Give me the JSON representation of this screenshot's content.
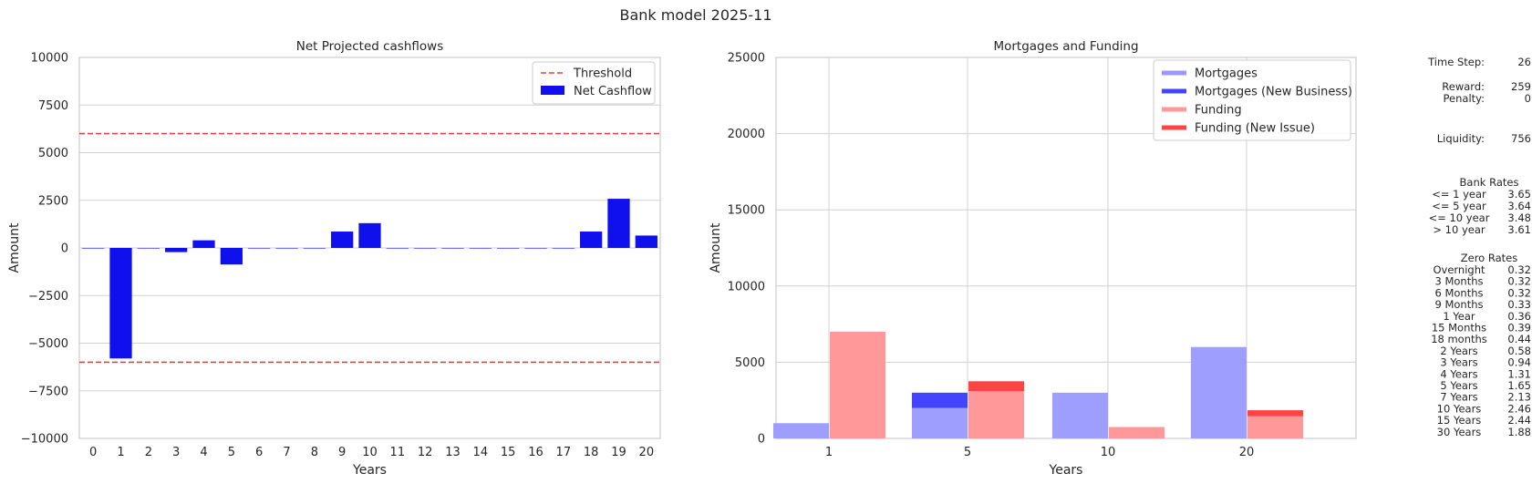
{
  "figure_title": "Bank model 2025-11",
  "chart_data": [
    {
      "type": "bar",
      "title": "Net Projected cashflows",
      "xlabel": "Years",
      "ylabel": "Amount",
      "ylim": [
        -10000,
        10000
      ],
      "yticks": [
        10000,
        7500,
        5000,
        2500,
        0,
        -2500,
        -5000,
        -7500,
        -10000
      ],
      "ytick_labels": [
        "10000",
        "7500",
        "5000",
        "2500",
        "0",
        "−2500",
        "−5000",
        "−7500",
        "−10000"
      ],
      "categories": [
        "0",
        "1",
        "2",
        "3",
        "4",
        "5",
        "6",
        "7",
        "8",
        "9",
        "10",
        "11",
        "12",
        "13",
        "14",
        "15",
        "16",
        "17",
        "18",
        "19",
        "20"
      ],
      "series": [
        {
          "name": "Net Cashflow",
          "color": "#1010ee",
          "values": [
            0,
            -5800,
            0,
            -220,
            400,
            -870,
            0,
            0,
            0,
            860,
            1300,
            0,
            0,
            0,
            0,
            0,
            0,
            0,
            860,
            2580,
            650
          ]
        }
      ],
      "threshold": {
        "name": "Threshold",
        "color": "#dd4444",
        "values": [
          6000,
          -6000
        ]
      },
      "grid": "horizontal",
      "legend": "top-right"
    },
    {
      "type": "bar",
      "title": "Mortgages and Funding",
      "xlabel": "Years",
      "ylabel": "Amount",
      "ylim": [
        0,
        25000
      ],
      "yticks": [
        0,
        5000,
        10000,
        15000,
        20000,
        25000
      ],
      "ytick_labels": [
        "0",
        "5000",
        "10000",
        "15000",
        "20000",
        "25000"
      ],
      "categories": [
        "1",
        "5",
        "10",
        "20"
      ],
      "series": [
        {
          "name": "Mortgages",
          "color": "#9999ff",
          "values": [
            1000,
            2000,
            3000,
            6000
          ]
        },
        {
          "name": "Mortgages (New Business)",
          "color": "#4444ff",
          "values": [
            0,
            1000,
            0,
            0
          ]
        },
        {
          "name": "Funding",
          "color": "#ff9999",
          "values": [
            7000,
            3100,
            750,
            1450
          ]
        },
        {
          "name": "Funding (New Issue)",
          "color": "#ff4444",
          "values": [
            0,
            650,
            0,
            400
          ]
        }
      ],
      "grid": "both",
      "legend": "top-right"
    }
  ],
  "side_panel": {
    "stats": [
      {
        "label": "Time Step:",
        "value": "26"
      },
      {
        "label": "Reward:",
        "value": "259"
      },
      {
        "label": "Penalty:",
        "value": "0"
      },
      {
        "label": "Liquidity:",
        "value": "756"
      }
    ],
    "bank_rates_title": "Bank Rates",
    "bank_rates": [
      {
        "label": "<= 1 year",
        "value": "3.65"
      },
      {
        "label": "<= 5 year",
        "value": "3.64"
      },
      {
        "label": "<= 10 year",
        "value": "3.48"
      },
      {
        "label": "> 10 year",
        "value": "3.61"
      }
    ],
    "zero_rates_title": "Zero Rates",
    "zero_rates": [
      {
        "label": "Overnight",
        "value": "0.32"
      },
      {
        "label": "3 Months",
        "value": "0.32"
      },
      {
        "label": "6 Months",
        "value": "0.32"
      },
      {
        "label": "9 Months",
        "value": "0.33"
      },
      {
        "label": "1 Year",
        "value": "0.36"
      },
      {
        "label": "15 Months",
        "value": "0.39"
      },
      {
        "label": "18 months",
        "value": "0.44"
      },
      {
        "label": "2 Years",
        "value": "0.58"
      },
      {
        "label": "3 Years",
        "value": "0.94"
      },
      {
        "label": "4 Years",
        "value": "1.31"
      },
      {
        "label": "5 Years",
        "value": "1.65"
      },
      {
        "label": "7 Years",
        "value": "2.13"
      },
      {
        "label": "10 Years",
        "value": "2.46"
      },
      {
        "label": "15 Years",
        "value": "2.44"
      },
      {
        "label": "30 Years",
        "value": "1.88"
      }
    ]
  }
}
